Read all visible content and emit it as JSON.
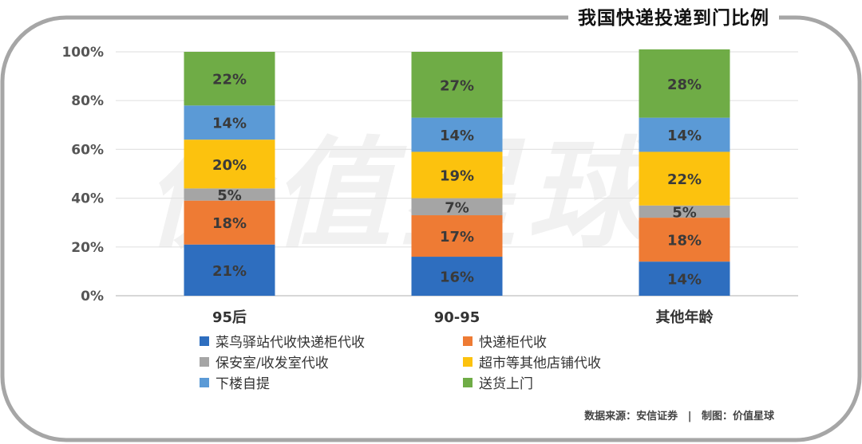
{
  "title": "我国快递投递到门比例",
  "source": {
    "data_source": "数据来源：安信证券",
    "separator": "|",
    "made_by": "制图：价值星球"
  },
  "watermark": "价值星球",
  "chart_data": {
    "type": "bar",
    "stacked": true,
    "categories": [
      "95后",
      "90-95",
      "其他年龄"
    ],
    "ylim": [
      0,
      100
    ],
    "y_ticks": [
      "0%",
      "20%",
      "40%",
      "60%",
      "80%",
      "100%"
    ],
    "grid": true,
    "legend_position": "bottom",
    "series": [
      {
        "name": "菜鸟驿站代收快递柜代收",
        "values": [
          21,
          16,
          14
        ],
        "labels": [
          "21%",
          "16%",
          "14%"
        ],
        "color": "#2e6ebf"
      },
      {
        "name": "快递柜代收",
        "values": [
          18,
          17,
          18
        ],
        "labels": [
          "18%",
          "17%",
          "18%"
        ],
        "color": "#ee7b34"
      },
      {
        "name": "保安室/收发室代收",
        "values": [
          5,
          7,
          5
        ],
        "labels": [
          "5%",
          "7%",
          "5%"
        ],
        "color": "#a5a5a5"
      },
      {
        "name": "超市等其他店铺代收",
        "values": [
          20,
          19,
          22
        ],
        "labels": [
          "20%",
          "19%",
          "22%"
        ],
        "color": "#fcc20e"
      },
      {
        "name": "下楼自提",
        "values": [
          14,
          14,
          14
        ],
        "labels": [
          "14%",
          "14%",
          "14%"
        ],
        "color": "#5b9ad6"
      },
      {
        "name": "送货上门",
        "values": [
          22,
          27,
          28
        ],
        "labels": [
          "22%",
          "27%",
          "28%"
        ],
        "color": "#6fac46"
      }
    ]
  }
}
